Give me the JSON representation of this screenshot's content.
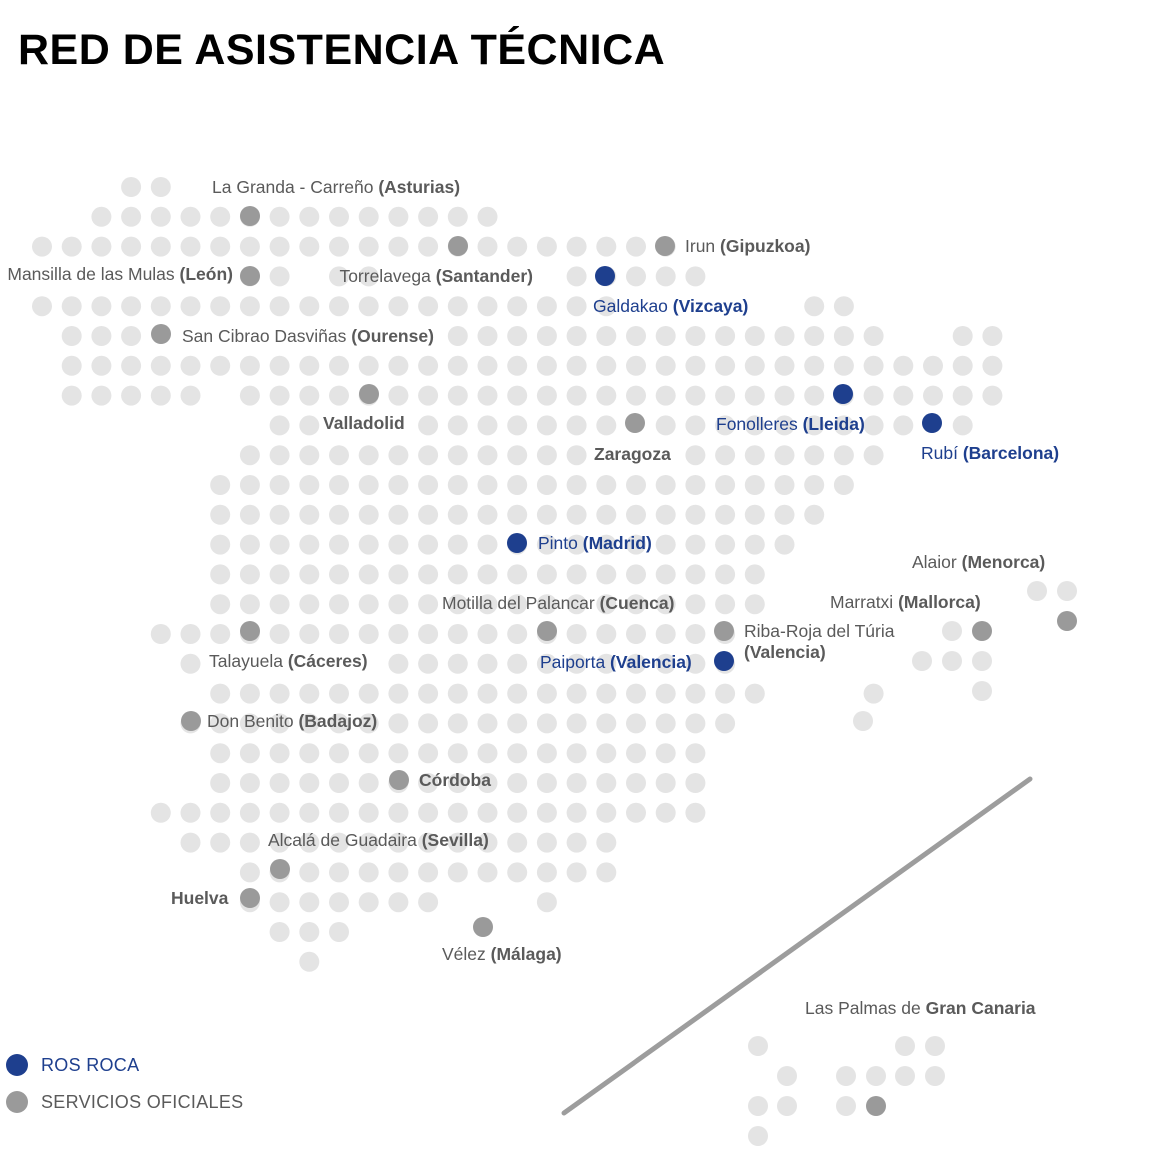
{
  "title": "RED DE ASISTENCIA TÉCNICA",
  "colors": {
    "ros_roca": "#1e3f8e",
    "servicios_oficiales": "#9a9a9a",
    "grid_dot": "#e4e4e4",
    "label": "#5a5a5a"
  },
  "legend": [
    {
      "label": "ROS ROCA",
      "type": "ros_roca"
    },
    {
      "label": "SERVICIOS OFICIALES",
      "type": "servicios_oficiales"
    }
  ],
  "locations": [
    {
      "id": "la-granda",
      "type": "servicios_oficiales",
      "city": "La Granda - Carreño",
      "region": "(Asturias)"
    },
    {
      "id": "mansilla",
      "type": "servicios_oficiales",
      "city": "Mansilla de las Mulas",
      "region": "(León)"
    },
    {
      "id": "torrelavega",
      "type": "servicios_oficiales",
      "city": "Torrelavega",
      "region": "(Santander)"
    },
    {
      "id": "irun",
      "type": "servicios_oficiales",
      "city": "Irun",
      "region": "(Gipuzkoa)"
    },
    {
      "id": "galdakao",
      "type": "ros_roca",
      "city": "Galdakao",
      "region": "(Vizcaya)"
    },
    {
      "id": "san-cibrao",
      "type": "servicios_oficiales",
      "city": "San Cibrao Dasviñas",
      "region": "(Ourense)"
    },
    {
      "id": "valladolid",
      "type": "servicios_oficiales",
      "city": "",
      "region": "Valladolid"
    },
    {
      "id": "zaragoza",
      "type": "servicios_oficiales",
      "city": "",
      "region": "Zaragoza"
    },
    {
      "id": "fonolleres",
      "type": "ros_roca",
      "city": "Fonolleres",
      "region": "(Lleida)"
    },
    {
      "id": "rubi",
      "type": "ros_roca",
      "city": "Rubí",
      "region": "(Barcelona)"
    },
    {
      "id": "pinto",
      "type": "ros_roca",
      "city": "Pinto",
      "region": "(Madrid)"
    },
    {
      "id": "alaior",
      "type": "servicios_oficiales",
      "city": "Alaior",
      "region": "(Menorca)"
    },
    {
      "id": "marratxi",
      "type": "servicios_oficiales",
      "city": "Marratxi",
      "region": "(Mallorca)"
    },
    {
      "id": "motilla",
      "type": "servicios_oficiales",
      "city": "Motilla del Palancar",
      "region": "(Cuenca)"
    },
    {
      "id": "riba-roja",
      "type": "servicios_oficiales",
      "city": "Riba-Roja del Túria",
      "region": "(Valencia)"
    },
    {
      "id": "talayuela",
      "type": "servicios_oficiales",
      "city": "Talayuela",
      "region": "(Cáceres)"
    },
    {
      "id": "paiporta",
      "type": "ros_roca",
      "city": "Paiporta",
      "region": "(Valencia)"
    },
    {
      "id": "don-benito",
      "type": "servicios_oficiales",
      "city": "Don Benito",
      "region": "(Badajoz)"
    },
    {
      "id": "cordoba",
      "type": "servicios_oficiales",
      "city": "",
      "region": "Córdoba"
    },
    {
      "id": "alcala",
      "type": "servicios_oficiales",
      "city": "Alcalá de Guadaira",
      "region": "(Sevilla)"
    },
    {
      "id": "huelva",
      "type": "servicios_oficiales",
      "city": "",
      "region": "Huelva"
    },
    {
      "id": "velez",
      "type": "servicios_oficiales",
      "city": "Vélez",
      "region": "(Málaga)"
    },
    {
      "id": "las-palmas",
      "type": "servicios_oficiales",
      "city": "Las Palmas de",
      "region": "Gran Canaria"
    }
  ]
}
